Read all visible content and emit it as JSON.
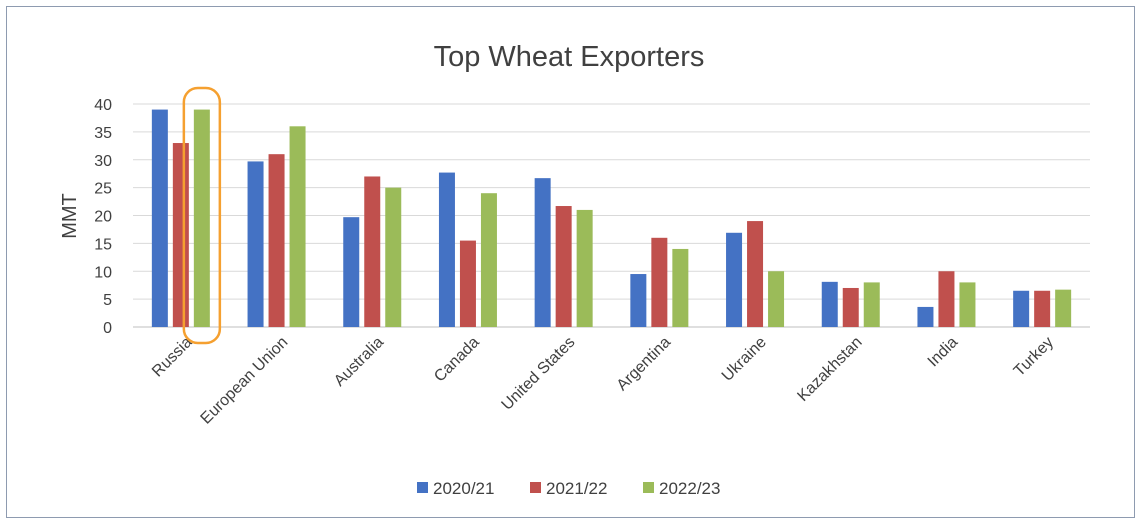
{
  "chart_data": {
    "type": "bar",
    "title": "Top Wheat Exporters",
    "xlabel": "",
    "ylabel": "MMT",
    "ylim": [
      0,
      40
    ],
    "yticks": [
      0,
      5,
      10,
      15,
      20,
      25,
      30,
      35,
      40
    ],
    "grid": true,
    "legend_position": "bottom",
    "categories": [
      "Russia",
      "European Union",
      "Australia",
      "Canada",
      "United States",
      "Argentina",
      "Ukraine",
      "Kazakhstan",
      "India",
      "Turkey"
    ],
    "series": [
      {
        "name": "2020/21",
        "color": "#4472c4",
        "values": [
          39,
          29.7,
          19.7,
          27.7,
          26.7,
          9.5,
          16.9,
          8.1,
          3.6,
          6.5
        ]
      },
      {
        "name": "2021/22",
        "color": "#c0504d",
        "values": [
          33,
          31,
          27,
          15.5,
          21.7,
          16,
          19,
          7,
          10,
          6.5
        ]
      },
      {
        "name": "2022/23",
        "color": "#9bbb59",
        "values": [
          39,
          36,
          25,
          24,
          21,
          14,
          10,
          8,
          8,
          6.7
        ]
      }
    ],
    "highlight": {
      "category": "Russia",
      "series": "2022/23",
      "color": "#f5a030"
    }
  }
}
